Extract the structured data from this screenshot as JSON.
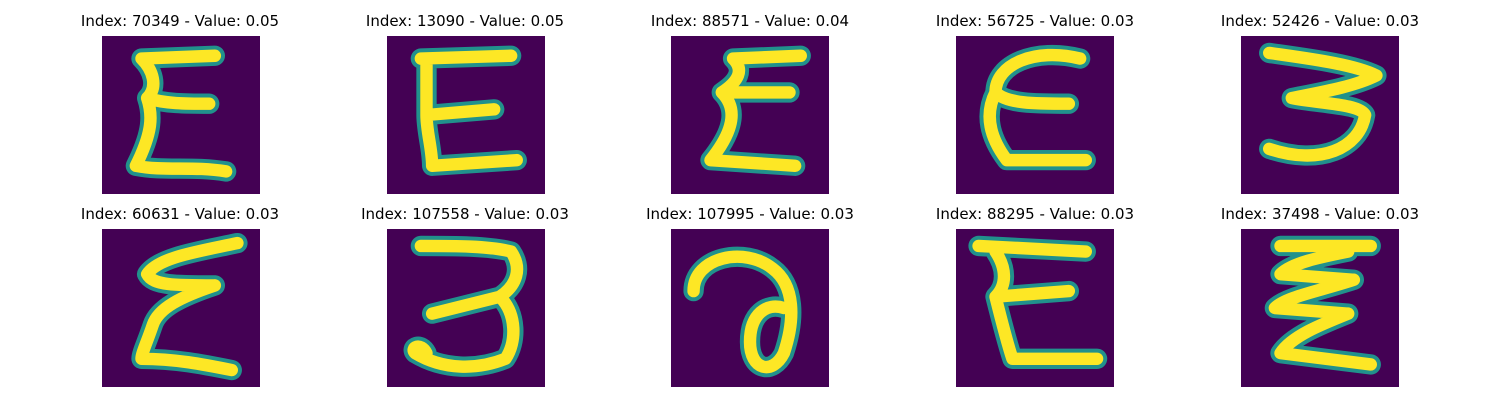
{
  "panels": [
    {
      "title": "Index: 70349 - Value: 0.05",
      "glyph": "epsilon-a"
    },
    {
      "title": "Index: 13090 - Value: 0.05",
      "glyph": "epsilon-b"
    },
    {
      "title": "Index: 88571 - Value: 0.04",
      "glyph": "epsilon-c"
    },
    {
      "title": "Index: 56725 - Value: 0.03",
      "glyph": "epsilon-d"
    },
    {
      "title": "Index: 52426 - Value: 0.03",
      "glyph": "three-a"
    },
    {
      "title": "Index: 60631 - Value: 0.03",
      "glyph": "epsilon-e"
    },
    {
      "title": "Index: 107558 - Value: 0.03",
      "glyph": "three-b"
    },
    {
      "title": "Index: 107995 - Value: 0.03",
      "glyph": "loop-a"
    },
    {
      "title": "Index: 88295 - Value: 0.03",
      "glyph": "epsilon-f"
    },
    {
      "title": "Index: 37498 - Value: 0.03",
      "glyph": "zigzag-a"
    }
  ],
  "colors": {
    "background": "#440154",
    "stroke_outer": "#21918c",
    "stroke_inner": "#fde725"
  }
}
